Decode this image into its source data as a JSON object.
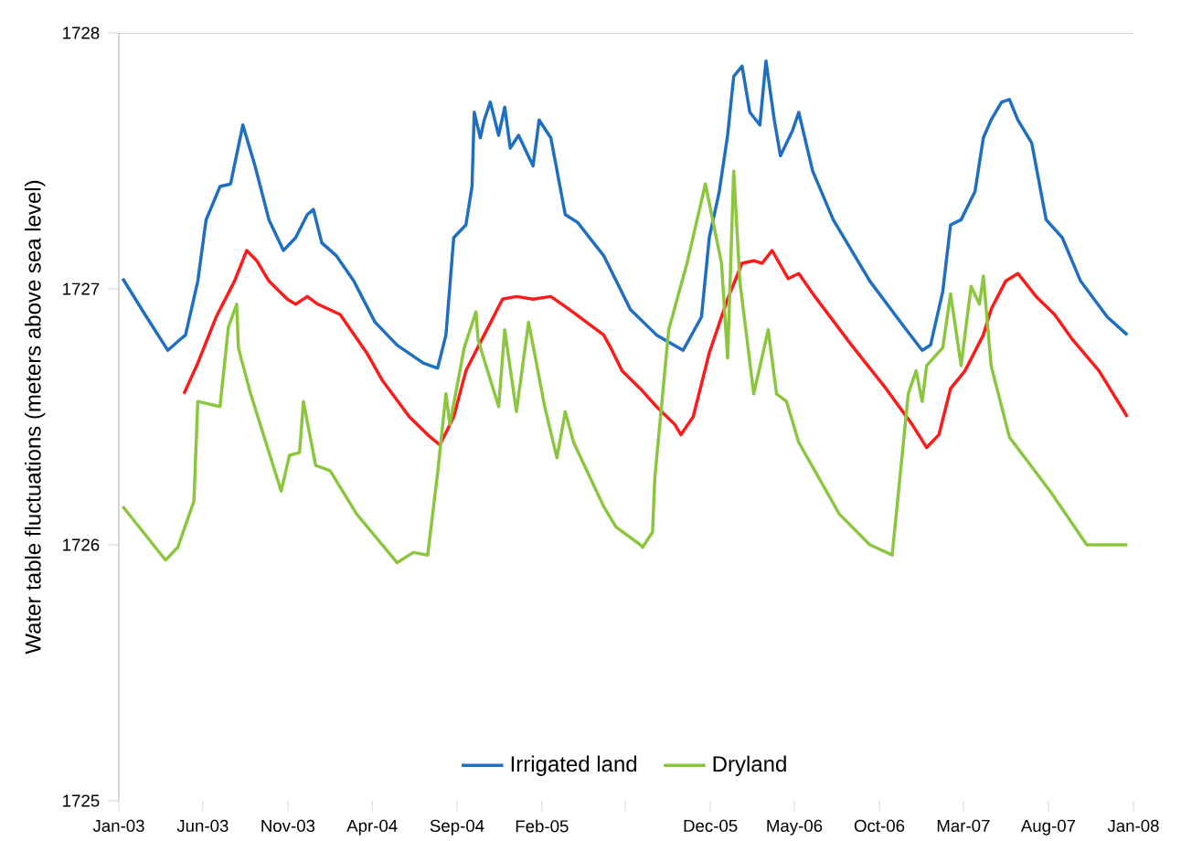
{
  "chart_data": {
    "type": "line",
    "ylabel": "Water table fluctuations (meters above sea level)",
    "ylim": [
      1725,
      1728
    ],
    "yticks": [
      1725,
      1726,
      1727,
      1728
    ],
    "xlim": [
      "2003-01-01",
      "2008-01-01"
    ],
    "xticks": [
      {
        "value": "2003-01-01",
        "label": "Jan-03"
      },
      {
        "value": "2003-06-01",
        "label": "Jun-03"
      },
      {
        "value": "2003-11-01",
        "label": "Nov-03"
      },
      {
        "value": "2004-04-01",
        "label": "Apr-04"
      },
      {
        "value": "2004-09-01",
        "label": "Sep-04"
      },
      {
        "value": "2005-02-01",
        "label": "Feb-05"
      },
      {
        "value": "2005-07-01",
        "label": null
      },
      {
        "value": "2005-12-01",
        "label": "Dec-05"
      },
      {
        "value": "2006-05-01",
        "label": "May-06"
      },
      {
        "value": "2006-10-01",
        "label": "Oct-06"
      },
      {
        "value": "2007-03-01",
        "label": "Mar-07"
      },
      {
        "value": "2007-08-01",
        "label": "Aug-07"
      },
      {
        "value": "2008-01-01",
        "label": "Jan-08"
      }
    ],
    "legend": "bottom",
    "series": [
      {
        "name": "Irrigated land",
        "color": "#1f6fc0",
        "x": [
          "2003-01-08",
          "2003-02-17",
          "2003-03-30",
          "2003-04-20",
          "2003-05-01",
          "2003-05-23",
          "2003-06-07",
          "2003-07-02",
          "2003-07-21",
          "2003-08-12",
          "2003-09-03",
          "2003-09-28",
          "2003-10-24",
          "2003-11-15",
          "2003-12-06",
          "2003-12-17",
          "2004-01-01",
          "2004-01-27",
          "2004-02-28",
          "2004-04-06",
          "2004-05-16",
          "2004-07-02",
          "2004-07-28",
          "2004-08-12",
          "2004-08-26",
          "2004-09-17",
          "2004-09-28",
          "2004-10-02",
          "2004-10-13",
          "2004-10-20",
          "2004-10-31",
          "2004-11-15",
          "2004-11-26",
          "2004-12-06",
          "2004-12-21",
          "2005-01-16",
          "2005-01-27",
          "2005-02-17",
          "2005-03-15",
          "2005-04-06",
          "2005-05-23",
          "2005-07-10",
          "2005-08-26",
          "2005-10-13",
          "2005-11-15",
          "2005-11-29",
          "2005-12-17",
          "2006-01-01",
          "2006-01-12",
          "2006-01-27",
          "2006-02-10",
          "2006-02-28",
          "2006-03-11",
          "2006-03-26",
          "2006-04-06",
          "2006-04-28",
          "2006-05-09",
          "2006-06-03",
          "2006-07-10",
          "2006-09-14",
          "2006-11-15",
          "2006-12-17",
          "2007-01-01",
          "2007-01-23",
          "2007-02-06",
          "2007-02-25",
          "2007-03-22",
          "2007-04-06",
          "2007-04-20",
          "2007-05-09",
          "2007-05-23",
          "2007-06-07",
          "2007-07-02",
          "2007-07-28",
          "2007-08-26",
          "2007-09-28",
          "2007-11-15",
          "2007-12-21"
        ],
        "values": [
          1727.04,
          1726.9,
          1726.76,
          1726.8,
          1726.82,
          1727.03,
          1727.27,
          1727.4,
          1727.41,
          1727.64,
          1727.48,
          1727.27,
          1727.15,
          1727.2,
          1727.29,
          1727.31,
          1727.18,
          1727.13,
          1727.03,
          1726.87,
          1726.78,
          1726.71,
          1726.69,
          1726.82,
          1727.2,
          1727.25,
          1727.4,
          1727.69,
          1727.59,
          1727.66,
          1727.73,
          1727.6,
          1727.71,
          1727.55,
          1727.6,
          1727.48,
          1727.66,
          1727.59,
          1727.29,
          1727.26,
          1727.13,
          1726.92,
          1726.82,
          1726.76,
          1726.89,
          1727.2,
          1727.38,
          1727.6,
          1727.83,
          1727.87,
          1727.69,
          1727.64,
          1727.89,
          1727.66,
          1727.52,
          1727.62,
          1727.69,
          1727.46,
          1727.27,
          1727.03,
          1726.85,
          1726.76,
          1726.78,
          1726.99,
          1727.25,
          1727.27,
          1727.38,
          1727.59,
          1727.66,
          1727.73,
          1727.74,
          1727.66,
          1727.57,
          1727.27,
          1727.2,
          1727.03,
          1726.89,
          1726.82
        ]
      },
      {
        "color": "#ff1a1a",
        "x": [
          "2003-04-28",
          "2003-05-23",
          "2003-06-25",
          "2003-07-28",
          "2003-08-19",
          "2003-09-06",
          "2003-09-28",
          "2003-10-31",
          "2003-11-15",
          "2003-12-06",
          "2003-12-25",
          "2004-02-03",
          "2004-03-22",
          "2004-04-20",
          "2004-06-07",
          "2004-07-10",
          "2004-08-01",
          "2004-08-26",
          "2004-09-17",
          "2004-10-20",
          "2004-11-22",
          "2004-12-17",
          "2005-01-16",
          "2005-02-17",
          "2005-03-22",
          "2005-05-23",
          "2005-06-07",
          "2005-06-25",
          "2005-07-28",
          "2005-08-26",
          "2005-09-28",
          "2005-10-09",
          "2005-10-31",
          "2005-11-29",
          "2006-01-01",
          "2006-01-27",
          "2006-02-17",
          "2006-03-04",
          "2006-03-22",
          "2006-04-20",
          "2006-05-09",
          "2006-06-07",
          "2006-08-12",
          "2006-10-13",
          "2006-11-29",
          "2006-12-25",
          "2007-01-16",
          "2007-02-06",
          "2007-03-04",
          "2007-04-06",
          "2007-04-20",
          "2007-05-16",
          "2007-06-07",
          "2007-07-10",
          "2007-08-12",
          "2007-09-14",
          "2007-10-31",
          "2007-12-21"
        ],
        "values": [
          1726.59,
          1726.71,
          1726.89,
          1727.03,
          1727.15,
          1727.11,
          1727.03,
          1726.96,
          1726.94,
          1726.97,
          1726.94,
          1726.9,
          1726.75,
          1726.64,
          1726.5,
          1726.43,
          1726.39,
          1726.5,
          1726.68,
          1726.82,
          1726.96,
          1726.97,
          1726.96,
          1726.97,
          1726.92,
          1726.82,
          1726.76,
          1726.68,
          1726.61,
          1726.54,
          1726.47,
          1726.43,
          1726.5,
          1726.75,
          1726.96,
          1727.1,
          1727.11,
          1727.1,
          1727.15,
          1727.04,
          1727.06,
          1726.97,
          1726.78,
          1726.61,
          1726.47,
          1726.38,
          1726.43,
          1726.61,
          1726.68,
          1726.82,
          1726.92,
          1727.03,
          1727.06,
          1726.97,
          1726.9,
          1726.8,
          1726.68,
          1726.5
        ]
      },
      {
        "name": "Dryland",
        "color": "#8cc63f",
        "x": [
          "2003-01-08",
          "2003-03-26",
          "2003-04-17",
          "2003-05-16",
          "2003-05-23",
          "2003-07-02",
          "2003-07-17",
          "2003-08-01",
          "2003-08-04",
          "2003-08-26",
          "2003-10-20",
          "2003-11-04",
          "2003-11-22",
          "2003-11-29",
          "2003-12-21",
          "2004-01-16",
          "2004-03-04",
          "2004-05-16",
          "2004-06-14",
          "2004-07-10",
          "2004-07-28",
          "2004-08-12",
          "2004-08-19",
          "2004-09-14",
          "2004-10-05",
          "2004-10-09",
          "2004-11-15",
          "2004-11-26",
          "2004-12-17",
          "2005-01-08",
          "2005-02-06",
          "2005-02-28",
          "2005-03-15",
          "2005-03-30",
          "2005-05-23",
          "2005-06-14",
          "2005-07-28",
          "2005-08-01",
          "2005-08-19",
          "2005-08-23",
          "2005-09-17",
          "2005-10-20",
          "2005-11-22",
          "2005-12-06",
          "2005-12-21",
          "2006-01-01",
          "2006-01-12",
          "2006-01-23",
          "2006-02-17",
          "2006-03-15",
          "2006-03-30",
          "2006-04-17",
          "2006-05-09",
          "2006-07-21",
          "2006-09-14",
          "2006-10-24",
          "2006-11-22",
          "2006-12-06",
          "2006-12-17",
          "2006-12-25",
          "2007-01-23",
          "2007-02-06",
          "2007-02-25",
          "2007-03-15",
          "2007-03-30",
          "2007-04-06",
          "2007-04-20",
          "2007-05-23",
          "2007-08-04",
          "2007-10-09",
          "2007-12-21"
        ],
        "values": [
          1726.15,
          1725.94,
          1725.99,
          1726.17,
          1726.56,
          1726.54,
          1726.85,
          1726.94,
          1726.77,
          1726.59,
          1726.21,
          1726.35,
          1726.36,
          1726.56,
          1726.31,
          1726.29,
          1726.12,
          1725.93,
          1725.97,
          1725.96,
          1726.28,
          1726.59,
          1726.47,
          1726.77,
          1726.91,
          1726.8,
          1726.54,
          1726.84,
          1726.52,
          1726.87,
          1726.54,
          1726.34,
          1726.52,
          1726.4,
          1726.15,
          1726.07,
          1726.0,
          1725.99,
          1726.05,
          1726.26,
          1726.84,
          1727.1,
          1727.41,
          1727.26,
          1727.1,
          1726.73,
          1727.46,
          1727.03,
          1726.59,
          1726.84,
          1726.59,
          1726.56,
          1726.4,
          1726.12,
          1726.0,
          1725.96,
          1726.59,
          1726.68,
          1726.56,
          1726.7,
          1726.77,
          1726.98,
          1726.7,
          1727.01,
          1726.94,
          1727.05,
          1726.7,
          1726.42,
          1726.21,
          1726.0,
          1726.0
        ]
      }
    ]
  }
}
